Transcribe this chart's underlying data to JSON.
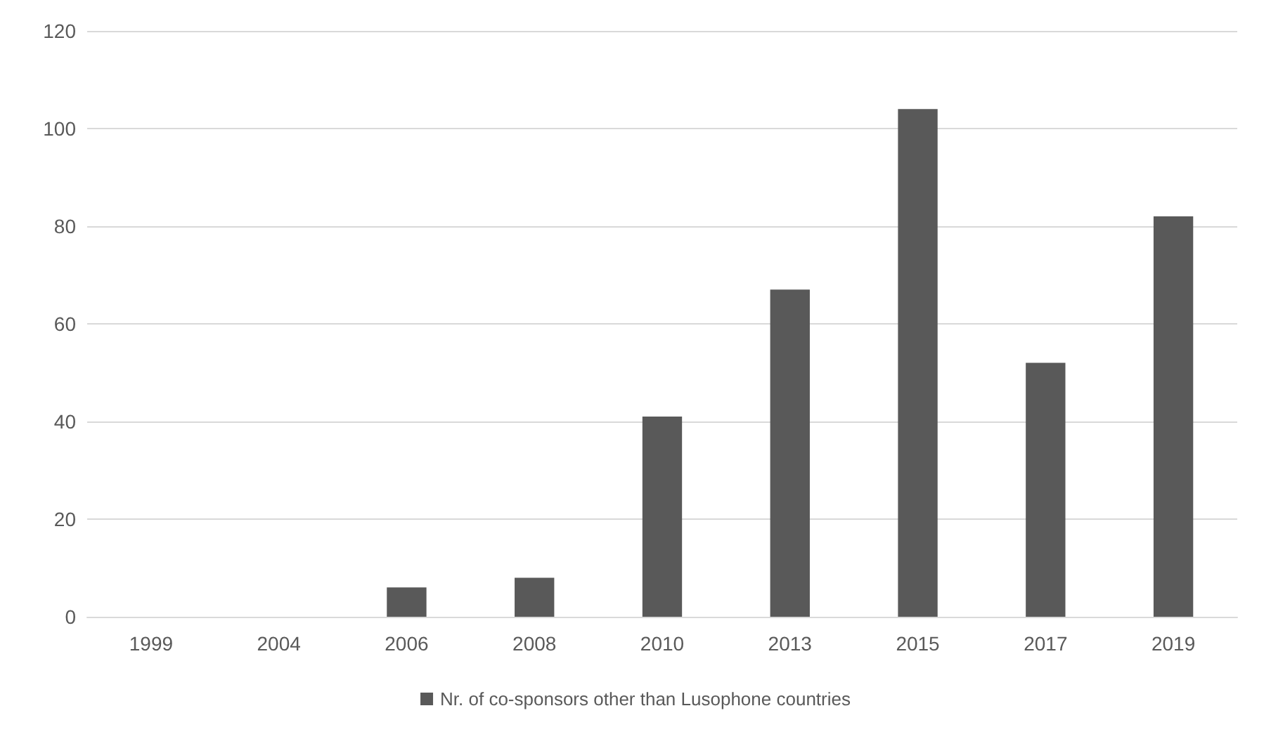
{
  "chart_data": {
    "type": "bar",
    "categories": [
      "1999",
      "2004",
      "2006",
      "2008",
      "2010",
      "2013",
      "2015",
      "2017",
      "2019"
    ],
    "series": [
      {
        "name": "Nr. of co-sponsors other than Lusophone countries",
        "color": "#595959",
        "values": [
          0,
          0,
          6,
          8,
          41,
          67,
          104,
          52,
          82
        ]
      }
    ],
    "ylim": [
      0,
      120
    ],
    "yticks": [
      0,
      20,
      40,
      60,
      80,
      100,
      120
    ],
    "grid": "y",
    "legend": "bottom"
  }
}
